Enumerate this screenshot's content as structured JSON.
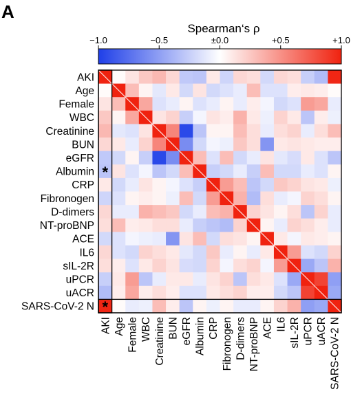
{
  "panel_label": "A",
  "chart_data": {
    "type": "heatmap",
    "title": "Spearman‘s ρ",
    "colorbar": {
      "min": -1.0,
      "max": 1.0,
      "ticks": [
        -1.0,
        -0.5,
        0.0,
        0.5,
        1.0
      ],
      "tick_labels": [
        "−1.0",
        "−0.5",
        "±0.0",
        "+0.5",
        "+1.0"
      ],
      "colors": {
        "negative": "#1f3fe8",
        "zero": "#ffffff",
        "positive": "#f0220f"
      }
    },
    "variables": [
      "AKI",
      "Age",
      "Female",
      "WBC",
      "Creatinine",
      "BUN",
      "eGFR",
      "Albumin",
      "CRP",
      "Fibronogen",
      "D-dimers",
      "NT-proBNP",
      "ACE",
      "IL6",
      "sIL-2R",
      "uPCR",
      "uACR",
      "SARS-CoV-2 N"
    ],
    "diagonal_line": true,
    "significance_marker": "*",
    "significant_cells": [
      [
        7,
        0
      ],
      [
        17,
        0
      ]
    ],
    "matrix": [
      [
        1.0,
        0.02,
        0.12,
        0.25,
        0.32,
        0.18,
        -0.28,
        -0.3,
        0.1,
        -0.22,
        0.18,
        0.15,
        -0.2,
        0.18,
        0.15,
        -0.25,
        -0.35,
        0.98
      ],
      [
        0.02,
        1.0,
        0.3,
        0.05,
        -0.12,
        0.1,
        -0.2,
        0.12,
        -0.2,
        -0.15,
        -0.1,
        0.3,
        -0.15,
        -0.15,
        0.08,
        0.1,
        0.08,
        0.02
      ],
      [
        0.12,
        0.3,
        1.0,
        0.4,
        -0.15,
        -0.1,
        0.05,
        -0.15,
        -0.1,
        0.05,
        -0.1,
        0.08,
        -0.05,
        -0.2,
        -0.15,
        0.45,
        0.4,
        -0.1
      ],
      [
        0.25,
        0.05,
        0.4,
        1.0,
        0.12,
        0.2,
        -0.25,
        -0.05,
        0.12,
        0.08,
        0.35,
        0.1,
        -0.08,
        0.2,
        0.1,
        -0.3,
        0.08,
        -0.08
      ],
      [
        0.32,
        -0.12,
        -0.15,
        0.12,
        1.0,
        0.55,
        -0.95,
        -0.3,
        0.05,
        0.05,
        0.3,
        0.15,
        -0.1,
        0.15,
        0.2,
        -0.1,
        0.15,
        0.3
      ],
      [
        0.18,
        0.1,
        -0.1,
        0.2,
        0.55,
        1.0,
        -0.6,
        -0.2,
        -0.05,
        -0.08,
        0.25,
        0.15,
        -0.55,
        0.1,
        0.12,
        0.1,
        0.08,
        0.08
      ],
      [
        -0.28,
        -0.2,
        0.05,
        -0.25,
        -0.95,
        -0.6,
        1.0,
        0.3,
        -0.15,
        0.3,
        -0.2,
        -0.1,
        0.12,
        -0.12,
        -0.18,
        0.1,
        -0.15,
        -0.3
      ],
      [
        -0.3,
        0.12,
        -0.15,
        -0.05,
        -0.3,
        -0.2,
        0.3,
        1.0,
        -0.25,
        -0.2,
        -0.1,
        -0.25,
        0.3,
        -0.2,
        -0.2,
        -0.1,
        -0.15,
        0.05
      ],
      [
        0.1,
        -0.2,
        -0.1,
        0.12,
        0.05,
        -0.05,
        -0.15,
        -0.25,
        1.0,
        0.45,
        0.3,
        -0.3,
        -0.2,
        0.25,
        0.2,
        0.12,
        0.1,
        -0.08
      ],
      [
        -0.22,
        -0.15,
        0.05,
        0.08,
        0.05,
        -0.08,
        0.3,
        -0.2,
        0.45,
        1.0,
        0.35,
        -0.35,
        0.15,
        -0.1,
        -0.05,
        0.2,
        0.15,
        0.05
      ],
      [
        0.18,
        -0.1,
        -0.1,
        0.35,
        0.3,
        0.25,
        -0.2,
        -0.1,
        0.3,
        0.35,
        1.0,
        0.2,
        0.12,
        0.05,
        0.15,
        -0.3,
        0.2,
        -0.1
      ],
      [
        0.15,
        0.3,
        0.08,
        0.1,
        0.15,
        0.15,
        -0.1,
        -0.25,
        -0.3,
        -0.35,
        0.2,
        1.0,
        0.05,
        -0.1,
        0.2,
        0.15,
        0.08,
        -0.1
      ],
      [
        -0.2,
        -0.15,
        -0.05,
        -0.08,
        -0.1,
        -0.55,
        0.12,
        0.3,
        -0.2,
        0.15,
        0.12,
        0.05,
        1.0,
        0.1,
        -0.05,
        0.1,
        0.08,
        0.05
      ],
      [
        0.18,
        -0.15,
        -0.2,
        0.2,
        0.15,
        0.1,
        -0.12,
        -0.2,
        0.25,
        -0.1,
        0.05,
        -0.1,
        0.1,
        1.0,
        0.45,
        -0.15,
        -0.2,
        0.2
      ],
      [
        0.15,
        0.08,
        -0.15,
        0.1,
        0.2,
        0.12,
        -0.18,
        -0.2,
        0.2,
        -0.05,
        0.15,
        0.2,
        -0.05,
        0.45,
        1.0,
        -0.45,
        -0.3,
        0.35
      ],
      [
        -0.25,
        0.1,
        0.45,
        -0.3,
        -0.1,
        0.1,
        0.1,
        -0.1,
        0.12,
        0.2,
        -0.3,
        0.15,
        0.1,
        -0.15,
        -0.45,
        1.0,
        0.85,
        -0.5
      ],
      [
        -0.35,
        0.08,
        0.4,
        0.08,
        0.15,
        0.08,
        -0.15,
        -0.15,
        0.1,
        0.15,
        0.2,
        0.08,
        0.08,
        -0.2,
        -0.3,
        0.85,
        1.0,
        -0.45
      ],
      [
        0.98,
        0.02,
        -0.1,
        -0.08,
        0.3,
        0.08,
        -0.3,
        0.05,
        -0.08,
        0.05,
        -0.1,
        -0.1,
        0.05,
        0.2,
        0.35,
        -0.5,
        -0.45,
        1.0
      ]
    ]
  }
}
